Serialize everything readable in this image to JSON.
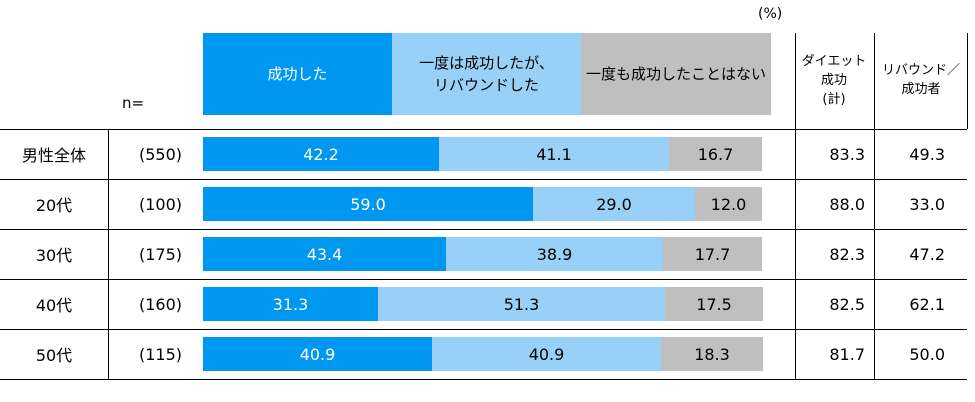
{
  "unit_label": "(%)",
  "n_label": "n=",
  "columns": {
    "success_total": "ダイエット\n成功\n(計)",
    "rebound_ratio": "リバウンド／\n成功者"
  },
  "colors": {
    "success": "#0097f0",
    "rebound": "#99d0f8",
    "never": "#bfbfbf"
  },
  "chart_data": {
    "type": "bar",
    "orientation": "horizontal",
    "stacked": true,
    "unit": "%",
    "categories": [
      "男性全体",
      "20代",
      "30代",
      "40代",
      "50代"
    ],
    "n": [
      "(550)",
      "(100)",
      "(175)",
      "(160)",
      "(115)"
    ],
    "series": [
      {
        "name": "成功した",
        "values": [
          42.2,
          59.0,
          43.4,
          31.3,
          40.9
        ]
      },
      {
        "name": "一度は成功したが、\nリバウンドした",
        "values": [
          41.1,
          29.0,
          38.9,
          51.3,
          40.9
        ]
      },
      {
        "name": "一度も成功したことはない",
        "values": [
          16.7,
          12.0,
          17.7,
          17.5,
          18.3
        ]
      }
    ],
    "success_total": [
      83.3,
      88.0,
      82.3,
      82.5,
      81.7
    ],
    "rebound_ratio": [
      49.3,
      33.0,
      47.2,
      62.1,
      50.0
    ],
    "xlim": [
      0,
      100
    ]
  }
}
